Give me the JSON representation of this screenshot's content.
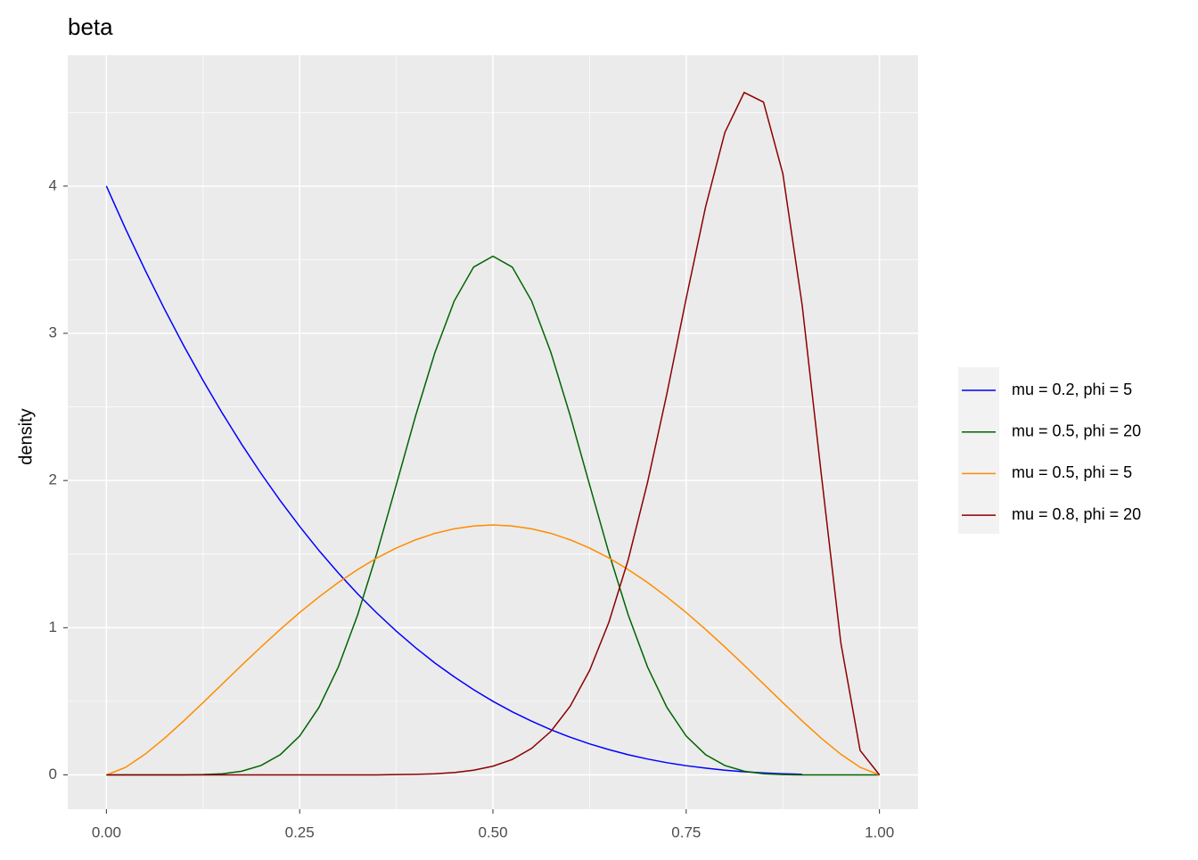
{
  "chart_data": {
    "type": "line",
    "title": "beta",
    "y_label": "density",
    "x": [
      0,
      0.025,
      0.05,
      0.075,
      0.1,
      0.125,
      0.15,
      0.175,
      0.2,
      0.225,
      0.25,
      0.275,
      0.3,
      0.325,
      0.35,
      0.375,
      0.4,
      0.425,
      0.45,
      0.475,
      0.5,
      0.525,
      0.55,
      0.575,
      0.6,
      0.625,
      0.65,
      0.675,
      0.7,
      0.725,
      0.75,
      0.775,
      0.8,
      0.825,
      0.85,
      0.875,
      0.9,
      0.925,
      0.95,
      0.975,
      1
    ],
    "series": [
      {
        "name": "mu = 0.2, phi = 5",
        "color": "#0000ff",
        "values": [
          4,
          3.707,
          3.43,
          3.166,
          2.916,
          2.68,
          2.457,
          2.246,
          2.048,
          1.862,
          1.688,
          1.524,
          1.372,
          1.23,
          1.099,
          0.977,
          0.864,
          0.76,
          0.666,
          0.579,
          0.5,
          0.429,
          0.365,
          0.307,
          0.256,
          0.211,
          0.172,
          0.137,
          0.108,
          0.083,
          0.0625,
          0.046,
          0.032,
          0.021,
          0.0135,
          0.008,
          0.004,
          null,
          null,
          null,
          null
        ]
      },
      {
        "name": "mu = 0.5, phi = 20",
        "color": "#006400",
        "values": [
          0,
          0,
          0,
          0,
          0,
          0.002,
          0.008,
          0.025,
          0.064,
          0.138,
          0.264,
          0.459,
          0.733,
          1.087,
          1.508,
          1.971,
          2.44,
          2.87,
          3.22,
          3.45,
          3.524,
          3.45,
          3.22,
          2.87,
          2.44,
          1.971,
          1.508,
          1.087,
          0.733,
          0.459,
          0.264,
          0.138,
          0.064,
          0.025,
          0.008,
          0.002,
          0,
          0,
          0,
          0,
          0
        ]
      },
      {
        "name": "mu = 0.5, phi = 5",
        "color": "#ff8c00",
        "values": [
          0,
          0.0517,
          0.1406,
          0.248,
          0.367,
          0.491,
          0.618,
          0.745,
          0.869,
          0.989,
          1.103,
          1.209,
          1.307,
          1.395,
          1.474,
          1.541,
          1.597,
          1.641,
          1.672,
          1.691,
          1.698,
          1.691,
          1.672,
          1.641,
          1.597,
          1.541,
          1.474,
          1.395,
          1.307,
          1.209,
          1.103,
          0.989,
          0.869,
          0.745,
          0.618,
          0.491,
          0.367,
          0.248,
          0.1406,
          0.0517,
          0
        ]
      },
      {
        "name": "mu = 0.8, phi = 20",
        "color": "#8b0000",
        "values": [
          0,
          0,
          0,
          0,
          0,
          0,
          0,
          0,
          0,
          0,
          0,
          0,
          0,
          0,
          0,
          0.002,
          0.0036,
          0.0078,
          0.0162,
          0.0318,
          0.0591,
          0.105,
          0.18,
          0.296,
          0.467,
          0.709,
          1.037,
          1.462,
          1.987,
          2.589,
          3.237,
          3.857,
          4.364,
          4.636,
          4.571,
          4.085,
          3.192,
          2.031,
          0.898,
          0.166,
          0
        ]
      }
    ],
    "xlim": [
      -0.05,
      1.05
    ],
    "ylim": [
      -0.233,
      4.889
    ],
    "xticks": [
      {
        "value": 0,
        "label": "0.00"
      },
      0.25,
      {
        "value": 0.5,
        "label": "0.50"
      },
      0.75,
      {
        "value": 1,
        "label": "1.00"
      }
    ],
    "yticks": [
      0,
      1,
      2,
      3,
      4
    ],
    "grid": true,
    "legend": "right"
  }
}
